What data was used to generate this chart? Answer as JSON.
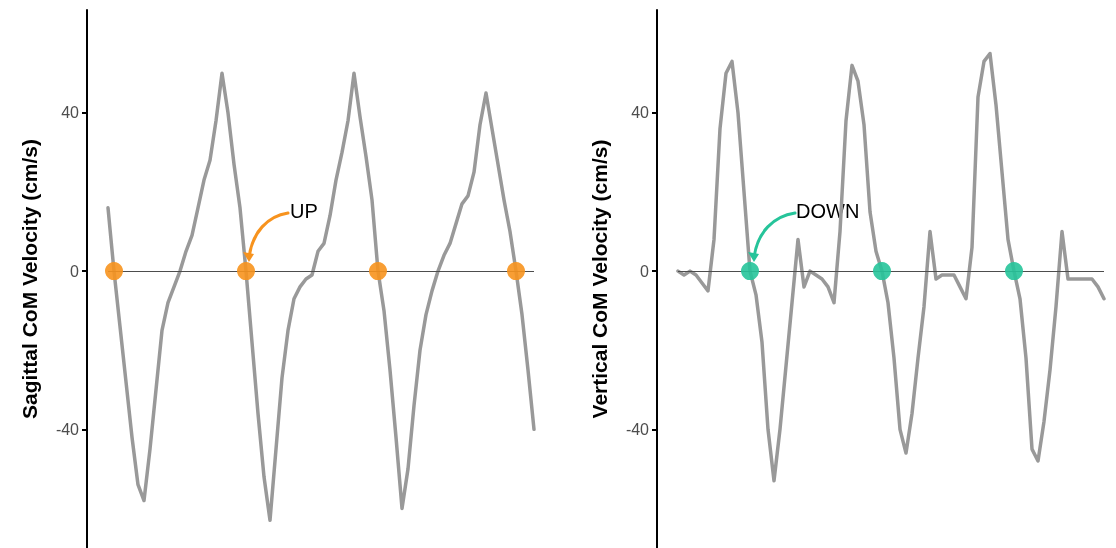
{
  "chart_data": [
    {
      "type": "line",
      "ylabel": "Sagittal CoM Velocity (cm/s)",
      "categories": [
        null,
        null,
        null,
        null,
        null,
        null,
        null,
        null,
        null,
        null,
        null,
        null,
        null,
        null,
        null,
        null,
        null,
        null,
        null,
        null,
        null,
        null,
        null,
        null,
        null,
        null,
        null,
        null,
        null,
        null,
        null,
        null,
        null,
        null,
        null,
        null,
        null,
        null,
        null,
        null,
        null,
        null,
        null,
        null,
        null,
        null,
        null,
        null,
        null,
        null,
        null,
        null,
        null,
        null,
        null,
        null,
        null,
        null,
        null,
        null,
        null,
        null,
        null,
        null,
        null,
        null,
        null,
        null,
        null,
        null,
        null,
        null
      ],
      "series": [
        {
          "color": "#999999",
          "values": [
            16,
            0,
            -14,
            -28,
            -42,
            -54,
            -58,
            -45,
            -30,
            -15,
            -8,
            -4,
            0,
            5,
            9,
            16,
            23,
            28,
            38,
            50,
            40,
            27,
            16,
            0,
            -18,
            -36,
            -52,
            -63,
            -45,
            -27,
            -15,
            -7,
            -4,
            -2,
            -1,
            5,
            7,
            14,
            23,
            30,
            38,
            50,
            39,
            29,
            18,
            0,
            -10,
            -25,
            -42,
            -60,
            -50,
            -34,
            -20,
            -11,
            -5,
            0,
            4,
            7,
            12,
            17,
            19,
            25,
            37,
            45,
            36,
            27,
            18,
            10,
            0,
            -11,
            -25,
            -40
          ]
        },
        {
          "type": "scatter",
          "color": "#f7931e",
          "values": [
            null,
            0,
            null,
            null,
            null,
            null,
            null,
            null,
            null,
            null,
            null,
            null,
            null,
            null,
            null,
            null,
            null,
            null,
            null,
            null,
            null,
            null,
            null,
            0,
            null,
            null,
            null,
            null,
            null,
            null,
            null,
            null,
            null,
            null,
            null,
            null,
            null,
            null,
            null,
            null,
            null,
            null,
            null,
            null,
            null,
            0,
            null,
            null,
            null,
            null,
            null,
            null,
            null,
            null,
            null,
            null,
            null,
            null,
            null,
            null,
            null,
            null,
            null,
            null,
            null,
            null,
            null,
            null,
            0,
            null,
            null,
            null
          ]
        }
      ],
      "ylim": [
        -70,
        66
      ],
      "yticks": [
        -40,
        0,
        40
      ],
      "tick_labels": "y",
      "grid": false,
      "line_style": "solid",
      "ref_lines": [
        {
          "axis": "y",
          "value": 0,
          "color": "#4d4d4d"
        }
      ],
      "annotations": [
        "UP"
      ]
    },
    {
      "type": "line",
      "ylabel": "Vertical CoM Velocity (cm/s)",
      "categories": [
        null,
        null,
        null,
        null,
        null,
        null,
        null,
        null,
        null,
        null,
        null,
        null,
        null,
        null,
        null,
        null,
        null,
        null,
        null,
        null,
        null,
        null,
        null,
        null,
        null,
        null,
        null,
        null,
        null,
        null,
        null,
        null,
        null,
        null,
        null,
        null,
        null,
        null,
        null,
        null,
        null,
        null,
        null,
        null,
        null,
        null,
        null,
        null,
        null,
        null,
        null,
        null,
        null,
        null,
        null,
        null,
        null,
        null,
        null,
        null,
        null,
        null,
        null,
        null,
        null,
        null,
        null,
        null,
        null,
        null,
        null,
        null
      ],
      "series": [
        {
          "color": "#999999",
          "values": [
            0,
            -1,
            0,
            -1,
            -3,
            -5,
            8,
            36,
            50,
            53,
            40,
            20,
            0,
            -6,
            -18,
            -40,
            -53,
            -40,
            -24,
            -8,
            8,
            -4,
            0,
            -1,
            -2,
            -4,
            -8,
            10,
            38,
            52,
            48,
            37,
            15,
            5,
            0,
            -8,
            -22,
            -40,
            -46,
            -36,
            -22,
            -9,
            10,
            -2,
            -1,
            -1,
            -1,
            -4,
            -7,
            6,
            44,
            53,
            55,
            42,
            25,
            8,
            0,
            -7,
            -22,
            -45,
            -48,
            -38,
            -25,
            -9,
            10,
            -2,
            -2,
            -2,
            -2,
            -2,
            -4,
            -7
          ]
        },
        {
          "type": "scatter",
          "color": "#26c49a",
          "values": [
            null,
            null,
            null,
            null,
            null,
            null,
            null,
            null,
            null,
            null,
            null,
            null,
            0,
            null,
            null,
            null,
            null,
            null,
            null,
            null,
            null,
            null,
            null,
            null,
            null,
            null,
            null,
            null,
            null,
            null,
            null,
            null,
            null,
            null,
            0,
            null,
            null,
            null,
            null,
            null,
            null,
            null,
            null,
            null,
            null,
            null,
            null,
            null,
            null,
            null,
            null,
            null,
            null,
            null,
            null,
            null,
            0,
            null,
            null,
            null,
            null,
            null,
            null,
            null,
            null,
            null,
            null,
            null,
            null,
            null,
            null,
            null
          ]
        }
      ],
      "ylim": [
        -70,
        66
      ],
      "yticks": [
        -40,
        0,
        40
      ],
      "tick_labels": "y",
      "grid": false,
      "line_style": "solid",
      "ref_lines": [
        {
          "axis": "y",
          "value": 0,
          "color": "#4d4d4d"
        }
      ],
      "annotations": [
        "DOWN"
      ]
    }
  ]
}
